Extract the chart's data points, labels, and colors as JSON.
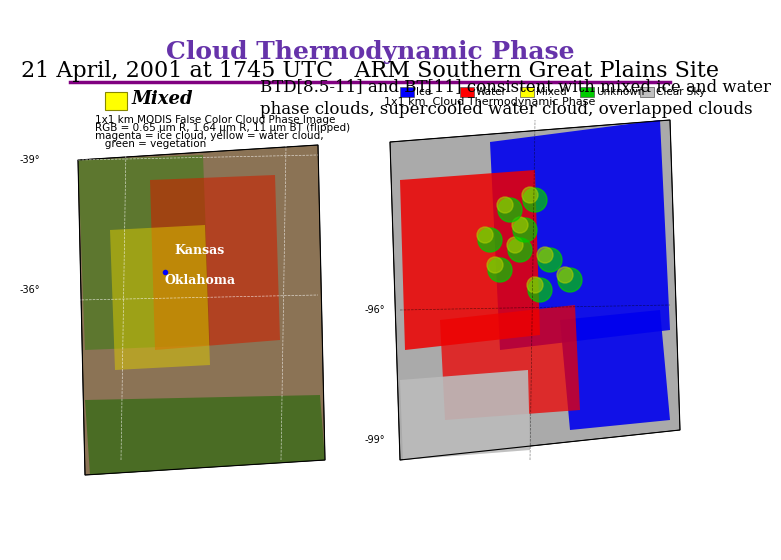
{
  "title_line1": "Cloud Thermodynamic Phase",
  "title_line2": "21 April, 2001 at 1745 UTC   ARM Southern Great Plains Site",
  "title_color": "#6633aa",
  "title2_color": "#000000",
  "divider_color": "#800080",
  "background_color": "#ffffff",
  "mixed_box_color": "#ffff00",
  "mixed_label": "Mixed",
  "annotation_text": "BTD[8.5-11] and BT[11] consistent with mixed ice and water\nphase clouds, supercooled water cloud, overlapped clouds",
  "left_image_label_line1": "1x1 km MODIS False Color Cloud Phase Image",
  "left_image_label_line2": "RGB = 0.65 μm R, 1.64 μm R, 11 μm BT (flipped)",
  "left_image_label_line3": "magenta = ice cloud, yellow = water cloud,",
  "left_image_label_line4": "   green = vegetation",
  "right_image_label": "1x1 km  Cloud Thermodynamic Phase",
  "legend_items": [
    {
      "label": "Ice",
      "color": "#0000ff"
    },
    {
      "label": "Water",
      "color": "#ff0000"
    },
    {
      "label": "Mixed",
      "color": "#ffff00"
    },
    {
      "label": "Unknown",
      "color": "#00cc00"
    },
    {
      "label": "Clear Sky",
      "color": "#c0c0c0"
    }
  ],
  "left_lat_labels": [
    "-39°",
    "-36°"
  ],
  "right_lat_labels": [
    "-99°",
    "-96°"
  ],
  "kansas_label": "Kansas",
  "oklahoma_label": "Oklahoma",
  "font_size_title1": 18,
  "font_size_title2": 16,
  "font_size_annotation": 12,
  "font_size_small": 7.5
}
